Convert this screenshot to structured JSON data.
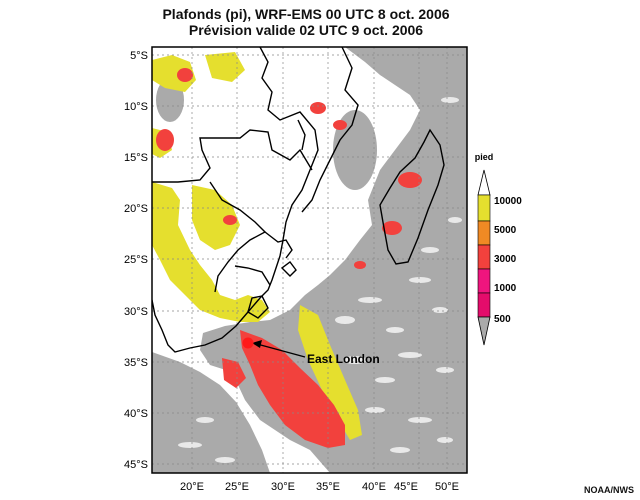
{
  "title_line1": "Plafonds (pi), WRF-EMS 00 UTC 8 oct. 2006",
  "title_line2": "Prévision valide 02 UTC 9 oct. 2006",
  "credit": "NOAA/NWS",
  "lat_labels": [
    "5°S",
    "10°S",
    "15°S",
    "20°S",
    "25°S",
    "30°S",
    "35°S",
    "40°S",
    "45°S"
  ],
  "lon_labels": [
    "20°E",
    "25°E",
    "30°E",
    "35°E",
    "40°E",
    "45°E",
    "50°E"
  ],
  "legend": {
    "unit": "pied",
    "labels": [
      "10000",
      "5000",
      "3000",
      "1000",
      "500"
    ],
    "colors": [
      "#e5df2e",
      "#f08a24",
      "#f2413d",
      "#ef157e",
      "#aaaaaa"
    ]
  },
  "annotation": {
    "label": "East London",
    "marker_color": "#ff1a1a"
  },
  "colors": {
    "ceiling_gray": "#aaaaaa",
    "ceiling_yellow": "#e5df2e",
    "ceiling_red": "#f2413d",
    "coast": "#000000"
  }
}
